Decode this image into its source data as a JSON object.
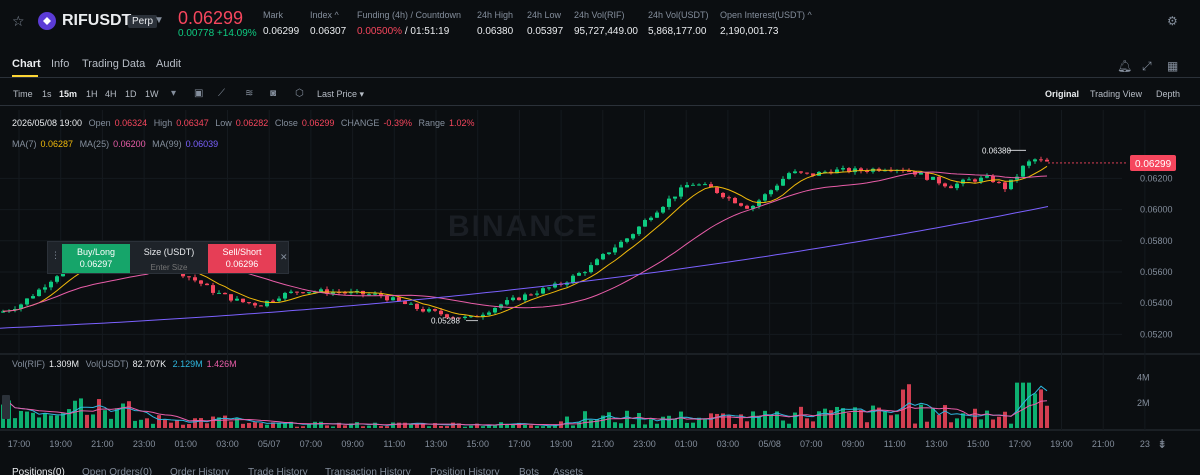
{
  "header": {
    "symbol": "RIFUSDT",
    "badge": "Perp",
    "last_price": "0.06299",
    "change": "0.00778 +14.09%",
    "stats": [
      {
        "label": "Mark",
        "value": "0.06299"
      },
      {
        "label": "Index ^",
        "value": "0.06307"
      },
      {
        "label": "Funding (4h) / Countdown",
        "value_red": "0.00500%",
        "value_rest": " / 01:51:19"
      },
      {
        "label": "24h High",
        "value": "0.06380"
      },
      {
        "label": "24h Low",
        "value": "0.05397"
      },
      {
        "label": "24h Vol(RIF)",
        "value": "95,727,449.00"
      },
      {
        "label": "24h Vol(USDT)",
        "value": "5,868,177.00"
      },
      {
        "label": "Open Interest(USDT) ^",
        "value": "2,190,001.73"
      }
    ]
  },
  "tabs": [
    "Chart",
    "Info",
    "Trading Data",
    "Audit"
  ],
  "toolbar": {
    "time_label": "Time",
    "intervals": [
      "1s",
      "15m",
      "1H",
      "4H",
      "1D",
      "1W"
    ],
    "active_interval": "15m",
    "price_type": "Last Price",
    "views": [
      "Original",
      "Trading View",
      "Depth"
    ],
    "active_view": "Original"
  },
  "ohlc": {
    "date": "2026/05/08 19:00",
    "open_label": "Open",
    "open": "0.06324",
    "high_label": "High",
    "high": "0.06347",
    "low_label": "Low",
    "low": "0.06282",
    "close_label": "Close",
    "close": "0.06299",
    "change_label": "CHANGE",
    "change": "-0.39%",
    "range_label": "Range",
    "range": "1.02%"
  },
  "ma": {
    "ma7_label": "MA(7)",
    "ma7": "0.06287",
    "ma25_label": "MA(25)",
    "ma25": "0.06200",
    "ma99_label": "MA(99)",
    "ma99": "0.06039"
  },
  "volume_legend": {
    "vol_label": "Vol(RIF)",
    "vol": "1.309M",
    "vol_usdt_label": "Vol(USDT)",
    "vol_usdt": "82.707K",
    "ma1": "2.129M",
    "ma2": "1.426M"
  },
  "order_widget": {
    "buy_label": "Buy/Long",
    "buy_price": "0.06297",
    "size_label": "Size (USDT)",
    "size_placeholder": "Enter Size",
    "sell_label": "Sell/Short",
    "sell_price": "0.06296"
  },
  "annotations": {
    "high": "0.06380",
    "low": "0.05288"
  },
  "current_price_tag": "0.06299",
  "watermark": "BINANCE",
  "price_axis": [
    "0.06200",
    "0.06000",
    "0.05800",
    "0.05600",
    "0.05400",
    "0.05200"
  ],
  "volume_axis": [
    "4M",
    "2M"
  ],
  "time_axis": [
    "17:00",
    "19:00",
    "21:00",
    "23:00",
    "01:00",
    "03:00",
    "05/07",
    "07:00",
    "09:00",
    "11:00",
    "13:00",
    "15:00",
    "17:00",
    "19:00",
    "21:00",
    "23:00",
    "01:00",
    "03:00",
    "05/08",
    "07:00",
    "09:00",
    "11:00",
    "13:00",
    "15:00",
    "17:00",
    "19:00",
    "21:00",
    "23"
  ],
  "bottom_tabs": [
    "Positions(0)",
    "Open Orders(0)",
    "Order History",
    "Trade History",
    "Transaction History",
    "Position History",
    "Bots",
    "Assets"
  ],
  "colors": {
    "up": "#0ecb81",
    "down": "#f6465d",
    "ma7": "#f0b90b",
    "ma25": "#e85da8",
    "ma99": "#7b61ff",
    "accent": "#fcd535"
  }
}
